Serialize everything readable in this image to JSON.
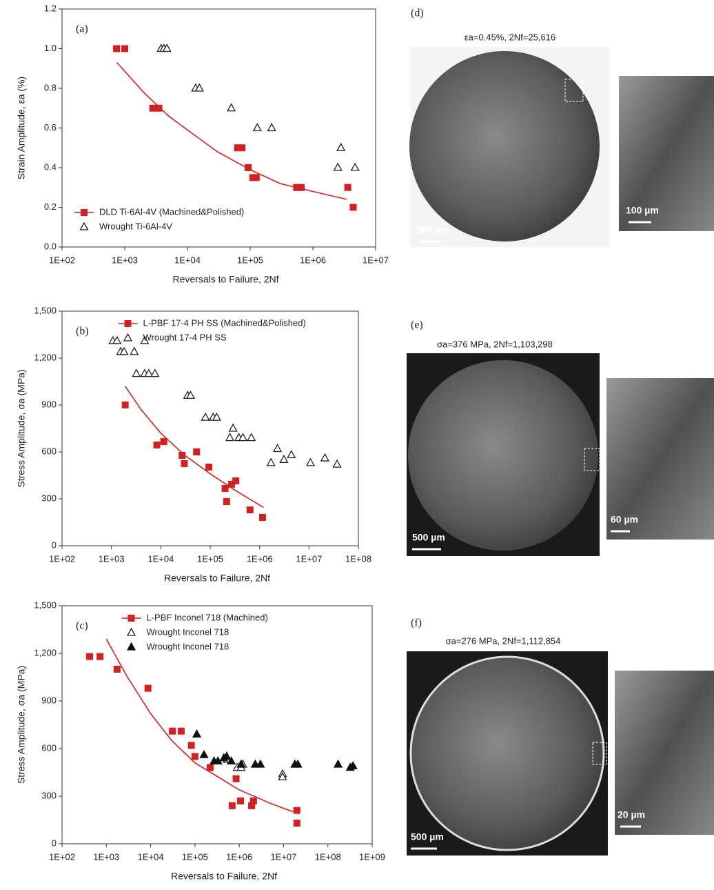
{
  "chart_data": [
    {
      "type": "scatter",
      "label": "(a)",
      "xlabel": "Reversals to Failure, 2Nf",
      "ylabel": "Strain Amplitude, εa (%)",
      "xlog": true,
      "xlim": [
        100,
        10000000
      ],
      "xticks": [
        {
          "value": 100,
          "label": "1E+02"
        },
        {
          "value": 1000,
          "label": "1E+03"
        },
        {
          "value": 10000,
          "label": "1E+04"
        },
        {
          "value": 100000,
          "label": "1E+05"
        },
        {
          "value": 1000000,
          "label": "1E+06"
        },
        {
          "value": 10000000,
          "label": "1E+07"
        }
      ],
      "ylim": [
        0,
        1.2
      ],
      "yticks": [
        {
          "value": 0,
          "label": "0.0"
        },
        0.2,
        0.4,
        0.6,
        0.8,
        {
          "value": 1,
          "label": "1.0"
        },
        1.2
      ],
      "legend": "lower left",
      "series": [
        {
          "name": "DLD Ti-6Al-4V (Machined&Polished)",
          "color": "#d42020",
          "marker": "square",
          "x": [
            740,
            1000,
            2800,
            3500,
            63000,
            74000,
            93000,
            110000,
            125000,
            550000,
            650000,
            3600000,
            4400000
          ],
          "values": [
            1.0,
            1.0,
            0.7,
            0.7,
            0.5,
            0.5,
            0.4,
            0.35,
            0.35,
            0.3,
            0.3,
            0.3,
            0.2
          ],
          "fit": {
            "x": [
              750,
              2000,
              5000,
              10000,
              30000,
              100000,
              300000,
              1000000,
              3500000
            ],
            "values": [
              0.93,
              0.78,
              0.66,
              0.59,
              0.48,
              0.39,
              0.32,
              0.28,
              0.24
            ]
          }
        },
        {
          "name": "Wrought Ti-6Al-4V",
          "color": "#222222",
          "marker": "triangle-open",
          "x": [
            3800,
            4200,
            4700,
            13500,
            15500,
            50000,
            130000,
            220000,
            2800000,
            2500000,
            4700000
          ],
          "values": [
            1.0,
            1.0,
            1.0,
            0.8,
            0.8,
            0.7,
            0.6,
            0.6,
            0.5,
            0.4,
            0.4
          ]
        }
      ]
    },
    {
      "type": "scatter",
      "label": "(b)",
      "xlabel": "Reversals to Failure, 2Nf",
      "ylabel": "Stress Amplitude, σa (MPa)",
      "xlog": true,
      "xlim": [
        100,
        100000000
      ],
      "xticks": [
        {
          "value": 100,
          "label": "1E+02"
        },
        {
          "value": 1000,
          "label": "1E+03"
        },
        {
          "value": 10000,
          "label": "1E+04"
        },
        {
          "value": 100000,
          "label": "1E+05"
        },
        {
          "value": 1000000,
          "label": "1E+06"
        },
        {
          "value": 10000000,
          "label": "1E+07"
        },
        {
          "value": 100000000,
          "label": "1E+08"
        }
      ],
      "ylim": [
        0,
        1500
      ],
      "yticks": [
        0,
        300,
        600,
        900,
        {
          "value": 1200,
          "label": "1,200"
        },
        {
          "value": 1500,
          "label": "1,500"
        }
      ],
      "legend": "upper center",
      "series": [
        {
          "name": "L-PBF 17-4 PH SS (Machined&Polished)",
          "color": "#d42020",
          "marker": "square",
          "x": [
            1900,
            8300,
            11500,
            27000,
            30000,
            53000,
            94000,
            200000,
            215000,
            270000,
            330000,
            640000,
            1150000
          ],
          "values": [
            900,
            644,
            666,
            578,
            525,
            600,
            503,
            366,
            282,
            393,
            415,
            229,
            181
          ],
          "fit": {
            "x": [
              1900,
              4000,
              10000,
              30000,
              100000,
              300000,
              1200000
            ],
            "values": [
              1020,
              870,
              720,
              580,
              460,
              360,
              245
            ]
          }
        },
        {
          "name": "Wrought 17-4 PH SS",
          "color": "#222222",
          "marker": "triangle-open",
          "x": [
            1070,
            1300,
            1540,
            1800,
            2900,
            4700,
            3200,
            4700,
            5700,
            7600,
            35000,
            40000,
            80000,
            115000,
            135000,
            290000,
            250000,
            380000,
            460000,
            680000,
            2300000,
            1700000,
            3100000,
            4400000,
            10700000,
            21000000,
            37000000
          ],
          "values": [
            1310,
            1310,
            1240,
            1240,
            1240,
            1310,
            1100,
            1100,
            1100,
            1100,
            960,
            960,
            820,
            820,
            820,
            750,
            690,
            690,
            690,
            690,
            620,
            530,
            550,
            580,
            530,
            560,
            520
          ]
        }
      ]
    },
    {
      "type": "scatter",
      "label": "(c)",
      "xlabel": "Reversals to Failure, 2Nf",
      "ylabel": "Stress Amplitude, σa (MPa)",
      "xlog": true,
      "xlim": [
        100,
        1000000000
      ],
      "xticks": [
        {
          "value": 100,
          "label": "1E+02"
        },
        {
          "value": 1000,
          "label": "1E+03"
        },
        {
          "value": 10000,
          "label": "1E+04"
        },
        {
          "value": 100000,
          "label": "1E+05"
        },
        {
          "value": 1000000,
          "label": "1E+06"
        },
        {
          "value": 10000000,
          "label": "1E+07"
        },
        {
          "value": 100000000,
          "label": "1E+08"
        },
        {
          "value": 1000000000,
          "label": "1E+09"
        }
      ],
      "ylim": [
        0,
        1500
      ],
      "yticks": [
        0,
        300,
        600,
        900,
        {
          "value": 1200,
          "label": "1,200"
        },
        {
          "value": 1500,
          "label": "1,500"
        }
      ],
      "legend": "upper center",
      "series": [
        {
          "name": "L-PBF Inconel 718 (Machined)",
          "color": "#d42020",
          "marker": "square",
          "x": [
            420,
            720,
            1750,
            8700,
            31000,
            49000,
            83000,
            100000,
            220000,
            850000,
            690000,
            1070000,
            1900000,
            2100000,
            20000000,
            20000000
          ],
          "values": [
            1180,
            1180,
            1100,
            980,
            710,
            710,
            620,
            550,
            480,
            410,
            240,
            270,
            240,
            270,
            210,
            130
          ],
          "fit": {
            "x": [
              1000,
              3000,
              10000,
              30000,
              100000,
              1000000,
              5000000,
              15000000,
              20000000
            ],
            "values": [
              1290,
              1050,
              820,
              650,
              510,
              340,
              255,
              205,
              205
            ]
          }
        },
        {
          "name": "Wrought Inconel 718",
          "color": "#222222",
          "marker": "triangle-open",
          "x": [
            540000,
            900000,
            1100000,
            1200000,
            9500000,
            9500000
          ],
          "values": [
            530,
            480,
            480,
            500,
            440,
            420
          ]
        },
        {
          "name": "Wrought Inconel 718",
          "color": "#111111",
          "marker": "triangle-filled",
          "x": [
            110000,
            160000,
            270000,
            330000,
            450000,
            520000,
            660000,
            1100000,
            2300000,
            3000000,
            18000000,
            21000000,
            170000000,
            320000000,
            370000000
          ],
          "values": [
            690,
            560,
            520,
            520,
            540,
            550,
            520,
            500,
            500,
            500,
            500,
            500,
            500,
            480,
            490
          ]
        }
      ]
    }
  ],
  "micrographs": [
    {
      "label": "(d)",
      "caption": "εa=0.45%,  2Nf=25,616",
      "scale_main": "500 µm",
      "scale_inset": "100 µm"
    },
    {
      "label": "(e)",
      "caption": "σa=376 MPa,  2Nf=1,103,298",
      "scale_main": "500 µm",
      "scale_inset": "60 µm"
    },
    {
      "label": "(f)",
      "caption": "σa=276 MPa,  2Nf=1,112,854",
      "scale_main": "500 µm",
      "scale_inset": "20 µm"
    }
  ]
}
